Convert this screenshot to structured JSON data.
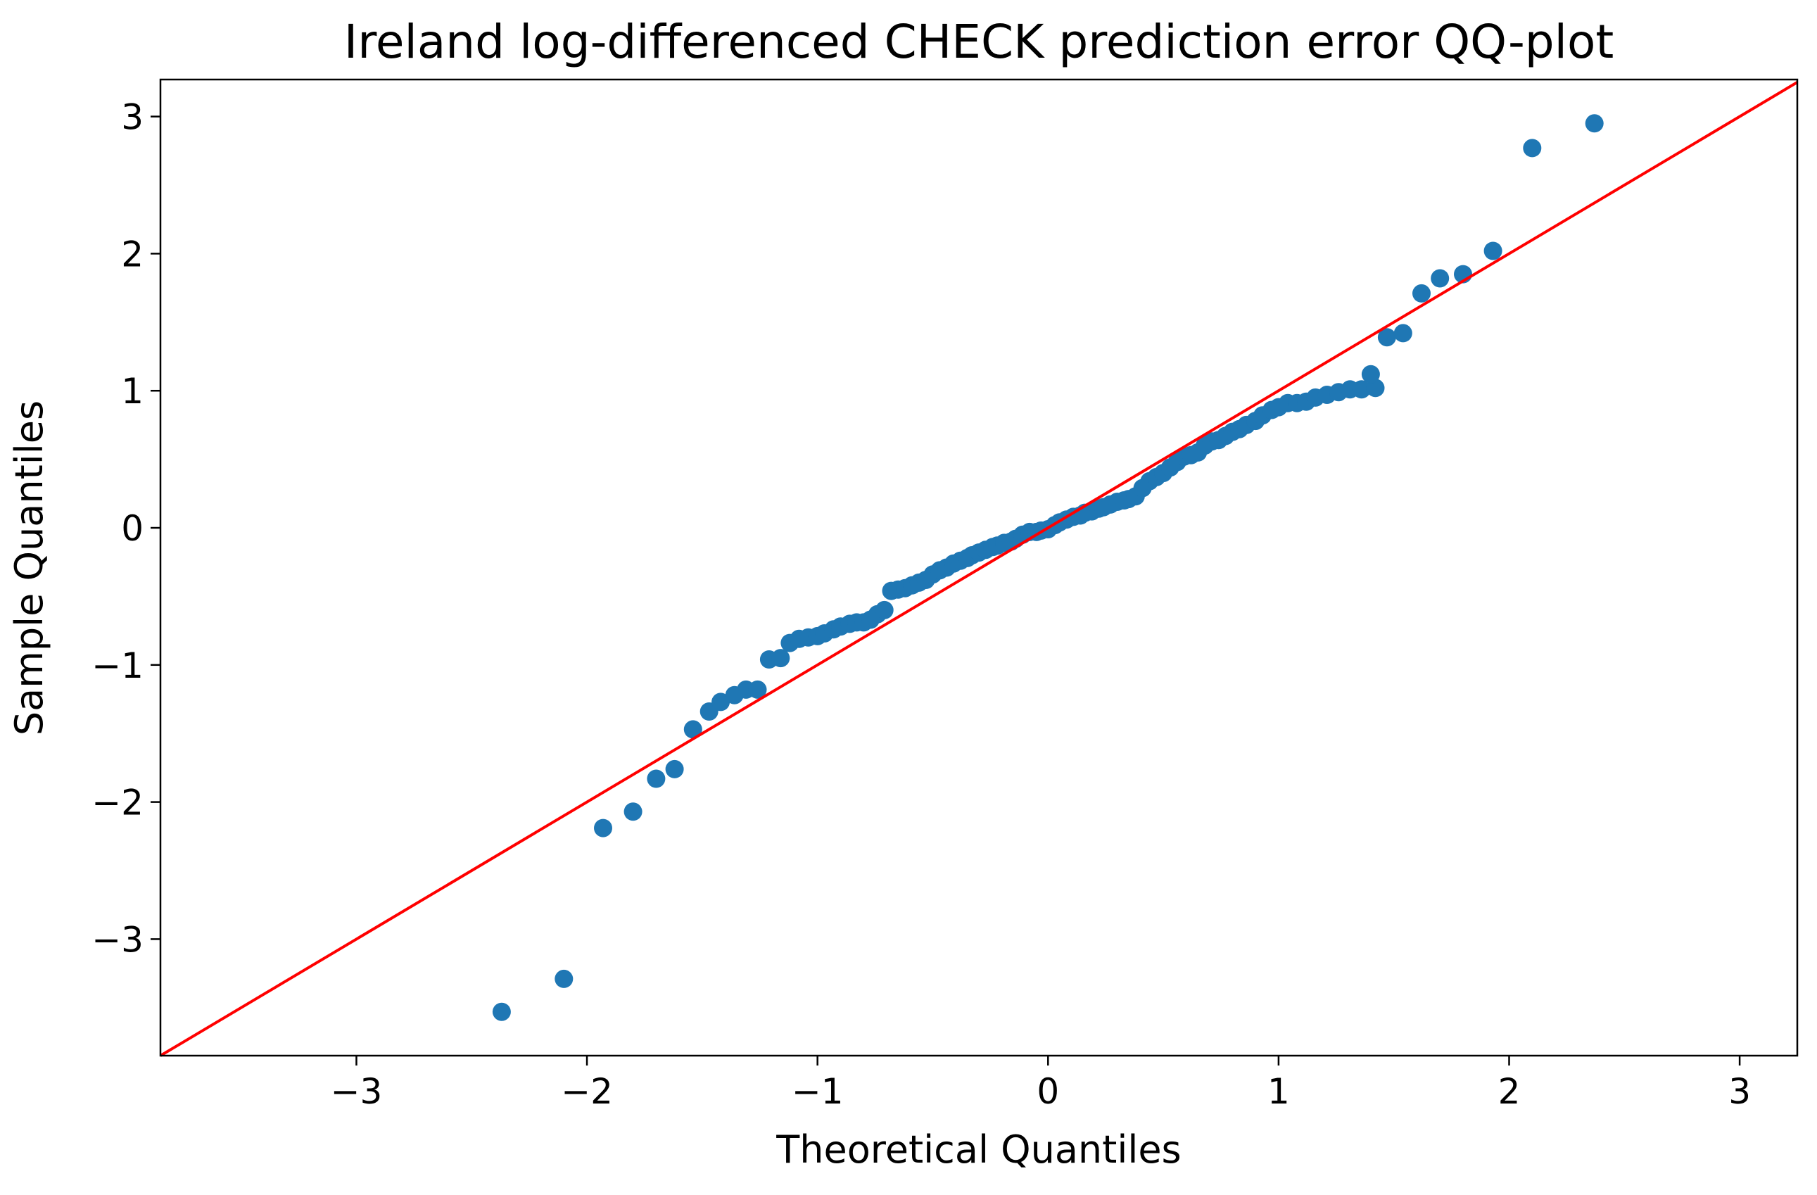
{
  "chart_data": {
    "type": "scatter",
    "title": "Ireland log-differenced CHECK prediction error QQ-plot",
    "xlabel": "Theoretical Quantiles",
    "ylabel": "Sample Quantiles",
    "xlim": [
      -3.85,
      3.25
    ],
    "ylim": [
      -3.85,
      3.27
    ],
    "xticks": [
      -3,
      -2,
      -1,
      0,
      1,
      2,
      3
    ],
    "yticks": [
      -3,
      -2,
      -1,
      0,
      1,
      2,
      3
    ],
    "grid": false,
    "colors": {
      "points": "#1f77b4",
      "reference_line": "#ff0000",
      "axes": "#000000"
    },
    "reference_line": {
      "slope": 1,
      "intercept": 0
    },
    "series": [
      {
        "points": [
          [
            -2.37,
            -3.53
          ],
          [
            -2.1,
            -3.29
          ],
          [
            -1.93,
            -2.19
          ],
          [
            -1.8,
            -2.07
          ],
          [
            -1.7,
            -1.83
          ],
          [
            -1.62,
            -1.76
          ],
          [
            -1.54,
            -1.47
          ],
          [
            -1.47,
            -1.34
          ],
          [
            -1.42,
            -1.27
          ],
          [
            -1.36,
            -1.22
          ],
          [
            -1.31,
            -1.18
          ],
          [
            -1.26,
            -1.18
          ],
          [
            -1.21,
            -0.96
          ],
          [
            -1.16,
            -0.95
          ],
          [
            -1.12,
            -0.84
          ],
          [
            -1.08,
            -0.81
          ],
          [
            -1.04,
            -0.8
          ],
          [
            -1.0,
            -0.79
          ],
          [
            -0.97,
            -0.77
          ],
          [
            -0.93,
            -0.74
          ],
          [
            -0.9,
            -0.72
          ],
          [
            -0.86,
            -0.7
          ],
          [
            -0.83,
            -0.69
          ],
          [
            -0.8,
            -0.69
          ],
          [
            -0.77,
            -0.67
          ],
          [
            -0.74,
            -0.63
          ],
          [
            -0.71,
            -0.6
          ],
          [
            -0.68,
            -0.46
          ],
          [
            -0.65,
            -0.45
          ],
          [
            -0.62,
            -0.44
          ],
          [
            -0.59,
            -0.42
          ],
          [
            -0.56,
            -0.4
          ],
          [
            -0.53,
            -0.38
          ],
          [
            -0.5,
            -0.34
          ],
          [
            -0.47,
            -0.31
          ],
          [
            -0.44,
            -0.29
          ],
          [
            -0.41,
            -0.26
          ],
          [
            -0.38,
            -0.24
          ],
          [
            -0.35,
            -0.22
          ],
          [
            -0.33,
            -0.2
          ],
          [
            -0.3,
            -0.18
          ],
          [
            -0.27,
            -0.16
          ],
          [
            -0.24,
            -0.14
          ],
          [
            -0.22,
            -0.13
          ],
          [
            -0.19,
            -0.11
          ],
          [
            -0.16,
            -0.1
          ],
          [
            -0.14,
            -0.08
          ],
          [
            -0.11,
            -0.05
          ],
          [
            -0.08,
            -0.03
          ],
          [
            -0.05,
            -0.03
          ],
          [
            -0.03,
            -0.02
          ],
          [
            0.0,
            -0.01
          ],
          [
            0.03,
            0.02
          ],
          [
            0.05,
            0.04
          ],
          [
            0.08,
            0.06
          ],
          [
            0.11,
            0.08
          ],
          [
            0.14,
            0.09
          ],
          [
            0.16,
            0.11
          ],
          [
            0.19,
            0.12
          ],
          [
            0.22,
            0.14
          ],
          [
            0.24,
            0.15
          ],
          [
            0.27,
            0.17
          ],
          [
            0.3,
            0.19
          ],
          [
            0.33,
            0.2
          ],
          [
            0.35,
            0.21
          ],
          [
            0.38,
            0.23
          ],
          [
            0.41,
            0.29
          ],
          [
            0.44,
            0.34
          ],
          [
            0.47,
            0.37
          ],
          [
            0.5,
            0.4
          ],
          [
            0.53,
            0.44
          ],
          [
            0.56,
            0.48
          ],
          [
            0.59,
            0.52
          ],
          [
            0.62,
            0.53
          ],
          [
            0.65,
            0.55
          ],
          [
            0.68,
            0.6
          ],
          [
            0.71,
            0.63
          ],
          [
            0.74,
            0.64
          ],
          [
            0.77,
            0.67
          ],
          [
            0.8,
            0.7
          ],
          [
            0.83,
            0.72
          ],
          [
            0.86,
            0.75
          ],
          [
            0.9,
            0.78
          ],
          [
            0.93,
            0.82
          ],
          [
            0.97,
            0.86
          ],
          [
            1.0,
            0.88
          ],
          [
            1.04,
            0.91
          ],
          [
            1.08,
            0.91
          ],
          [
            1.12,
            0.92
          ],
          [
            1.16,
            0.95
          ],
          [
            1.21,
            0.97
          ],
          [
            1.26,
            0.99
          ],
          [
            1.31,
            1.01
          ],
          [
            1.36,
            1.01
          ],
          [
            1.42,
            1.02
          ],
          [
            1.4,
            1.12
          ],
          [
            1.47,
            1.39
          ],
          [
            1.54,
            1.42
          ],
          [
            1.62,
            1.71
          ],
          [
            1.7,
            1.82
          ],
          [
            1.8,
            1.85
          ],
          [
            1.93,
            2.02
          ],
          [
            2.1,
            2.77
          ],
          [
            2.37,
            2.95
          ]
        ]
      }
    ]
  }
}
